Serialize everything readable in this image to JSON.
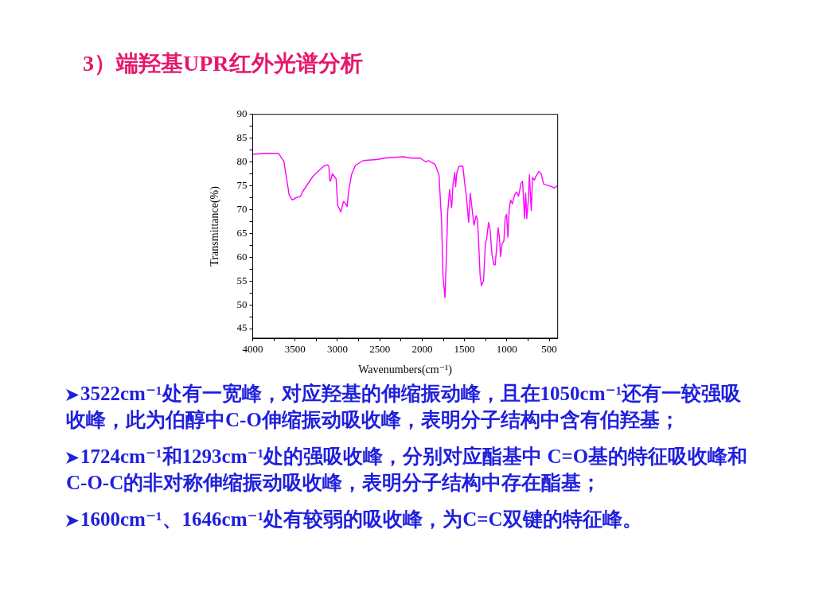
{
  "chart_data": {
    "type": "line",
    "title": "3）端羟基UPR红外光谱分析",
    "xlabel": "Wavenumbers(cm⁻¹)",
    "ylabel": "Transmittance(%)",
    "x": [
      4000,
      3850,
      3695,
      3632,
      3601,
      3570,
      3532,
      3476,
      3438,
      3413,
      3288,
      3163,
      3116,
      3100,
      3091,
      3082,
      3059,
      3038,
      3016,
      2997,
      2960,
      2928,
      2906,
      2887,
      2866,
      2834,
      2787,
      2693,
      2537,
      2443,
      2223,
      2130,
      2021,
      1958,
      1927,
      1848,
      1801,
      1770,
      1754,
      1730,
      1716,
      1698,
      1676,
      1652,
      1634,
      1615,
      1605,
      1590,
      1566,
      1519,
      1498,
      1482,
      1467,
      1451,
      1432,
      1410,
      1388,
      1363,
      1347,
      1332,
      1316,
      1300,
      1275,
      1254,
      1238,
      1216,
      1197,
      1176,
      1153,
      1138,
      1122,
      1103,
      1087,
      1075,
      1056,
      1035,
      1019,
      1003,
      988,
      972,
      956,
      934,
      909,
      885,
      862,
      831,
      815,
      800,
      791,
      778,
      765,
      746,
      734,
      721,
      712,
      697,
      674,
      657,
      622,
      596,
      565,
      519,
      471,
      440,
      408
    ],
    "values": [
      81.6,
      81.8,
      81.8,
      80.1,
      76.7,
      73.1,
      72.0,
      72.6,
      72.7,
      73.7,
      77.0,
      79.1,
      79.4,
      79.0,
      76.2,
      76.0,
      77.5,
      77.0,
      76.5,
      70.9,
      69.5,
      71.7,
      71.3,
      70.6,
      74.0,
      77.3,
      79.3,
      80.3,
      80.5,
      80.8,
      81.1,
      80.8,
      80.8,
      80.0,
      80.3,
      79.5,
      77.3,
      67.3,
      56.2,
      51.5,
      59.0,
      69.5,
      74.2,
      70.4,
      75.6,
      77.8,
      74.8,
      77.8,
      79.1,
      79.1,
      75.6,
      73.4,
      70.6,
      67.3,
      73.4,
      70.1,
      66.7,
      68.7,
      67.8,
      62.8,
      56.2,
      54.0,
      55.1,
      62.8,
      64.0,
      67.3,
      65.6,
      60.6,
      58.4,
      58.4,
      61.7,
      66.2,
      64.0,
      60.1,
      62.8,
      63.4,
      68.4,
      69.0,
      64.2,
      70.1,
      72.0,
      71.2,
      73.1,
      73.7,
      72.8,
      75.6,
      75.9,
      71.2,
      68.1,
      73.4,
      68.1,
      72.3,
      77.3,
      72.8,
      69.8,
      76.7,
      76.2,
      77.0,
      78.0,
      77.6,
      75.3,
      75.1,
      74.8,
      74.5,
      75.0
    ],
    "color": "#ff00ff",
    "xlim": [
      4000,
      400
    ],
    "xticks": [
      4000,
      {
        "value": 3750,
        "label": null
      },
      3500,
      {
        "value": 3250,
        "label": null
      },
      3000,
      {
        "value": 2750,
        "label": null
      },
      2500,
      {
        "value": 2250,
        "label": null
      },
      2000,
      {
        "value": 1750,
        "label": null
      },
      1500,
      {
        "value": 1250,
        "label": null
      },
      1000,
      {
        "value": 750,
        "label": null
      },
      500
    ],
    "ylim": [
      43,
      90
    ],
    "yticks": [
      45,
      {
        "value": 47.5,
        "label": null
      },
      50,
      {
        "value": 52.5,
        "label": null
      },
      55,
      {
        "value": 57.5,
        "label": null
      },
      60,
      {
        "value": 62.5,
        "label": null
      },
      65,
      {
        "value": 67.5,
        "label": null
      },
      70,
      {
        "value": 72.5,
        "label": null
      },
      75,
      {
        "value": 77.5,
        "label": null
      },
      80,
      {
        "value": 82.5,
        "label": null
      },
      85,
      {
        "value": 87.5,
        "label": null
      },
      90
    ],
    "grid": false,
    "legend": false,
    "annotations": [
      "3522cm⁻¹处有一宽峰，对应羟基的伸缩振动峰，且在1050cm⁻¹还有一较强吸收峰，此为伯醇中C-O伸缩振动吸收峰，表明分子结构中含有伯羟基；",
      "1724cm⁻¹和1293cm⁻¹处的强吸收峰，分别对应酯基中 C=O基的特征吸收峰和C-O-C的非对称伸缩振动吸收峰，表明分子结构中存在酯基；",
      "1600cm⁻¹、1646cm⁻¹处有较弱的吸收峰，为C=C双键的特征峰。"
    ]
  }
}
